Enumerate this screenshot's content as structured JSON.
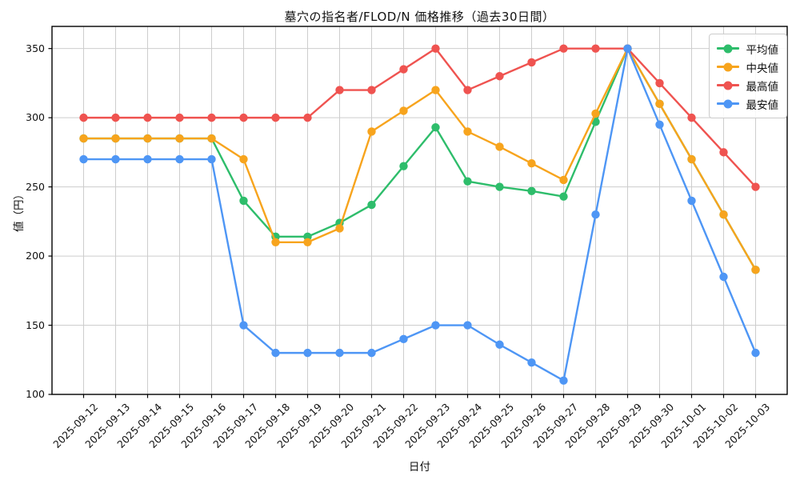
{
  "title": "墓穴の指名者/FLOD/N 価格推移（過去30日間）",
  "chart_data": {
    "type": "line",
    "title": "墓穴の指名者/FLOD/N 価格推移（過去30日間）",
    "xlabel": "日付",
    "ylabel": "値（円）",
    "x": [
      "2025-09-12",
      "2025-09-13",
      "2025-09-14",
      "2025-09-15",
      "2025-09-16",
      "2025-09-17",
      "2025-09-18",
      "2025-09-19",
      "2025-09-20",
      "2025-09-21",
      "2025-09-22",
      "2025-09-23",
      "2025-09-24",
      "2025-09-25",
      "2025-09-26",
      "2025-09-27",
      "2025-09-28",
      "2025-09-29",
      "2025-09-30",
      "2025-10-01",
      "2025-10-02",
      "2025-10-03"
    ],
    "series": [
      {
        "name": "平均値",
        "color": "#2ebd6b",
        "values": [
          285,
          285,
          285,
          285,
          285,
          240,
          214,
          214,
          224,
          237,
          265,
          293,
          254,
          250,
          247,
          243,
          297,
          350,
          310,
          270,
          230,
          190
        ]
      },
      {
        "name": "中央値",
        "color": "#f7a41d",
        "values": [
          285,
          285,
          285,
          285,
          285,
          270,
          210,
          210,
          220,
          290,
          305,
          320,
          290,
          279,
          267,
          255,
          303,
          350,
          310,
          270,
          230,
          190
        ]
      },
      {
        "name": "最高値",
        "color": "#ef5350",
        "values": [
          300,
          300,
          300,
          300,
          300,
          300,
          300,
          300,
          320,
          320,
          335,
          350,
          320,
          330,
          340,
          350,
          350,
          350,
          325,
          300,
          275,
          250
        ]
      },
      {
        "name": "最安値",
        "color": "#4e96f5",
        "values": [
          270,
          270,
          270,
          270,
          270,
          150,
          130,
          130,
          130,
          130,
          140,
          150,
          150,
          136,
          123,
          110,
          230,
          350,
          295,
          240,
          185,
          130
        ]
      }
    ],
    "yticks": [
      100,
      150,
      200,
      250,
      300,
      350
    ],
    "ylim": [
      100,
      366
    ],
    "grid": true,
    "legend_position": "upper right",
    "grid_color": "#cdcdcd",
    "axis_color": "#000000"
  }
}
